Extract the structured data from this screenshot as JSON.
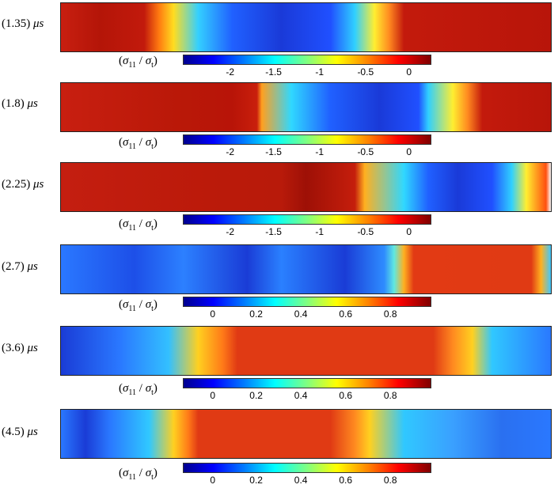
{
  "panels": [
    {
      "time": "(1.35)",
      "unit": "μs",
      "cbar_ticks": [
        "-2",
        "-1.5",
        "-1",
        "-0.5",
        "0"
      ],
      "field_gradient": "linear-gradient(to right,#c81f10 0%,#b41508 8%,#c21a0c 17%,#ff7a10 20%,#ffdd20 23%,#34d0ff 28%,#2060ff 35%,#1a3ad8 45%,#2050ff 55%,#30d0ff 60%,#ffee30 64%,#ff8a20 67%,#c31a0c 70%,#b8150a 100%)"
    },
    {
      "time": "(1.8)",
      "unit": "μs",
      "cbar_ticks": [
        "-2",
        "-1.5",
        "-1",
        "-0.5",
        "0"
      ],
      "field_gradient": "linear-gradient(to right,#c81f10 0%,#b91808 25%,#b81408 35%,#c91f0c 40%,#ffa020 41%,#30d8ff 47%,#2060ff 55%,#1a3ad8 65%,#2050ff 73%,#30d0ff 75%,#ffee30 80%,#ff8a20 83%,#c31a0c 86%,#b8150a 100%)"
    },
    {
      "time": "(2.25)",
      "unit": "μs",
      "cbar_ticks": [
        "-2",
        "-1.5",
        "-1",
        "-0.5",
        "0"
      ],
      "field_gradient": "linear-gradient(to right,#c41e10 0%,#bb1a0a 30%,#b81a0a 45%,#9e1006 50%,#c51e0c 60%,#ffb020 62%,#30d8ff 70%,#2060ff 75%,#1a3ad8 81%,#2050ff 88%,#30d0ff 92%,#ffee30 95%,#ff5010 99%,#ffffff 100%)"
    },
    {
      "time": "(2.7)",
      "unit": "μs",
      "cbar_ticks": [
        "0",
        "0.2",
        "0.4",
        "0.6",
        "0.8"
      ],
      "field_gradient": "linear-gradient(to right,#2a78ff 0%,#1d4fe8 15%,#2c80ff 25%,#1a3cd6 38%,#2a80ff 45%,#1a3cd6 58%,#2e8cff 66%,#60e8e0 68%,#ffb020 70%,#e23a14 72%,#e03a14 96%,#ffb020 98%,#40c8ff 100%)"
    },
    {
      "time": "(3.6)",
      "unit": "μs",
      "cbar_ticks": [
        "0",
        "0.2",
        "0.4",
        "0.6",
        "0.8"
      ],
      "field_gradient": "linear-gradient(to right,#1a3cd6 0%,#2a78ff 12%,#33c0ff 22%,#ffd020 28%,#ff7a18 33%,#e03a14 36%,#e03a14 76%,#ff8a20 80%,#ffd020 84%,#30c8ff 88%,#2a78ff 100%)"
    },
    {
      "time": "(4.5)",
      "unit": "μs",
      "cbar_ticks": [
        "0",
        "0.2",
        "0.4",
        "0.6",
        "0.8"
      ],
      "field_gradient": "linear-gradient(to right,#2a78ff 0%,#1a3cd6 5%,#2a78ff 10%,#30c8ff 18%,#ffd020 23%,#ff7a18 26%,#e03a14 28%,#e03a14 55%,#ff8a20 60%,#ffd020 63%,#30c8ff 70%,#3aa0ff 80%,#2a70f0 90%,#2a78ff 100%)"
    }
  ],
  "colorbar_label": {
    "sigma": "σ",
    "numerator_sub": "11",
    "denominator_sub": "t"
  }
}
